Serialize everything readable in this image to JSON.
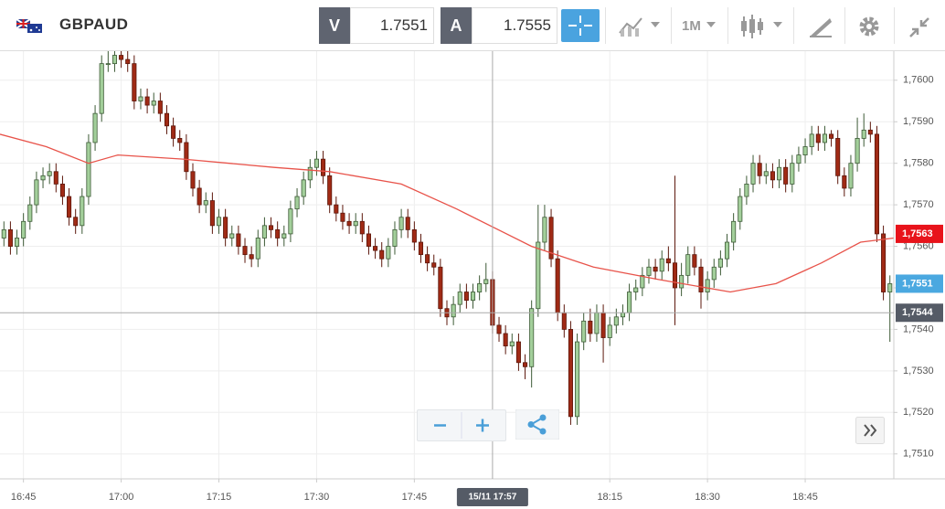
{
  "toolbar": {
    "symbol": "GBPAUD",
    "bid": {
      "label": "V",
      "price": 1.7551
    },
    "ask": {
      "label": "A",
      "price": 1.7555
    },
    "timeframe": "1M"
  },
  "chart_data": {
    "type": "candlestick",
    "x": [
      1002,
      1003,
      1004,
      1005,
      1006,
      1007,
      1008,
      1009,
      1010,
      1011,
      1012,
      1013,
      1014,
      1015,
      1016,
      1017,
      1018,
      1019,
      1020,
      1021,
      1022,
      1023,
      1024,
      1025,
      1026,
      1027,
      1028,
      1029,
      1030,
      1031,
      1032,
      1033,
      1034,
      1035,
      1036,
      1037,
      1038,
      1039,
      1040,
      1041,
      1042,
      1043,
      1044,
      1045,
      1046,
      1047,
      1048,
      1049,
      1050,
      1051,
      1052,
      1053,
      1054,
      1055,
      1056,
      1057,
      1058,
      1059,
      1060,
      1061,
      1062,
      1063,
      1064,
      1065,
      1066,
      1067,
      1068,
      1069,
      1070,
      1071,
      1072,
      1073,
      1074,
      1075,
      1076,
      1077,
      1078,
      1079,
      1080,
      1081,
      1082,
      1083,
      1084,
      1085,
      1086,
      1087,
      1088,
      1089,
      1090,
      1091,
      1092,
      1093,
      1094,
      1095,
      1096,
      1097,
      1098,
      1099,
      1100,
      1101,
      1102,
      1103,
      1104,
      1105,
      1106,
      1107,
      1108,
      1109,
      1110,
      1111,
      1112,
      1113,
      1114,
      1115,
      1116,
      1117,
      1118,
      1119,
      1120,
      1121,
      1122,
      1123,
      1124,
      1125,
      1126,
      1127,
      1128,
      1129,
      1130,
      1131,
      1132,
      1133,
      1134,
      1135,
      1136,
      1137,
      1138
    ],
    "open": [
      1.7562,
      1.7564,
      1.756,
      1.7562,
      1.7566,
      1.757,
      1.7576,
      1.7577,
      1.7578,
      1.7575,
      1.7572,
      1.7567,
      1.7565,
      1.7572,
      1.7585,
      1.7592,
      1.7604,
      1.7604,
      1.7606,
      1.7605,
      1.7604,
      1.7595,
      1.7596,
      1.7594,
      1.7595,
      1.7592,
      1.7589,
      1.7586,
      1.7585,
      1.7578,
      1.7574,
      1.757,
      1.7571,
      1.7565,
      1.7567,
      1.7562,
      1.7563,
      1.756,
      1.7558,
      1.7557,
      1.7562,
      1.7565,
      1.7564,
      1.7562,
      1.7563,
      1.7569,
      1.7572,
      1.7576,
      1.7579,
      1.7581,
      1.7577,
      1.757,
      1.7568,
      1.7566,
      1.7565,
      1.7566,
      1.7563,
      1.756,
      1.7559,
      1.7557,
      1.756,
      1.7564,
      1.7567,
      1.7564,
      1.7561,
      1.7558,
      1.7556,
      1.7555,
      1.7545,
      1.7543,
      1.7546,
      1.7549,
      1.7547,
      1.7549,
      1.7551,
      1.7552,
      1.7541,
      1.7539,
      1.7536,
      1.7537,
      1.7532,
      1.7531,
      1.7545,
      1.7561,
      1.7567,
      1.7557,
      1.7544,
      1.754,
      1.7519,
      1.7537,
      1.7542,
      1.7539,
      1.7544,
      1.7538,
      1.7541,
      1.7543,
      1.7544,
      1.7549,
      1.755,
      1.7553,
      1.7555,
      1.7554,
      1.7557,
      1.7556,
      1.755,
      1.7553,
      1.7558,
      1.7555,
      1.7549,
      1.7552,
      1.7555,
      1.7557,
      1.7561,
      1.7566,
      1.7572,
      1.7575,
      1.758,
      1.7577,
      1.7578,
      1.7576,
      1.7579,
      1.7575,
      1.758,
      1.7582,
      1.7584,
      1.7587,
      1.7585,
      1.7587,
      1.7586,
      1.7577,
      1.7574,
      1.758,
      1.7586,
      1.7588,
      1.7587,
      1.7563,
      1.7549
    ],
    "high": [
      1.7566,
      1.7566,
      1.7564,
      1.7568,
      1.7572,
      1.7578,
      1.7579,
      1.758,
      1.758,
      1.7577,
      1.7574,
      1.7569,
      1.7574,
      1.7587,
      1.7594,
      1.7606,
      1.7607,
      1.7607,
      1.7607,
      1.7607,
      1.7606,
      1.7598,
      1.7598,
      1.7597,
      1.7597,
      1.7594,
      1.7591,
      1.7588,
      1.7587,
      1.758,
      1.7576,
      1.7573,
      1.7573,
      1.7569,
      1.7569,
      1.7565,
      1.7565,
      1.7562,
      1.756,
      1.7564,
      1.7567,
      1.7567,
      1.7566,
      1.7565,
      1.7571,
      1.7574,
      1.7578,
      1.7581,
      1.7583,
      1.7583,
      1.7579,
      1.7572,
      1.757,
      1.7568,
      1.7568,
      1.7568,
      1.7565,
      1.7562,
      1.7561,
      1.7562,
      1.7566,
      1.7569,
      1.7569,
      1.7566,
      1.7563,
      1.756,
      1.7558,
      1.7557,
      1.7547,
      1.7548,
      1.7551,
      1.7551,
      1.7551,
      1.7553,
      1.7556,
      1.7554,
      1.7543,
      1.7541,
      1.7539,
      1.7539,
      1.7534,
      1.7547,
      1.757,
      1.757,
      1.7569,
      1.7559,
      1.7546,
      1.7542,
      1.7539,
      1.7544,
      1.7545,
      1.7546,
      1.7546,
      1.7543,
      1.7545,
      1.7546,
      1.7551,
      1.7552,
      1.7555,
      1.7557,
      1.7557,
      1.7559,
      1.756,
      1.7577,
      1.7556,
      1.756,
      1.756,
      1.7557,
      1.7554,
      1.7557,
      1.7559,
      1.7563,
      1.7568,
      1.7574,
      1.7577,
      1.7582,
      1.7582,
      1.758,
      1.758,
      1.7581,
      1.7581,
      1.7582,
      1.7584,
      1.7586,
      1.7589,
      1.7589,
      1.7589,
      1.7588,
      1.7588,
      1.7579,
      1.7582,
      1.7591,
      1.7592,
      1.759,
      1.7589,
      1.7565,
      1.7553
    ],
    "low": [
      1.756,
      1.7558,
      1.7558,
      1.756,
      1.7564,
      1.7568,
      1.7574,
      1.7575,
      1.7573,
      1.757,
      1.7565,
      1.7563,
      1.7563,
      1.757,
      1.7583,
      1.759,
      1.7602,
      1.7602,
      1.7603,
      1.7602,
      1.7593,
      1.7593,
      1.7592,
      1.7592,
      1.759,
      1.7587,
      1.7584,
      1.7583,
      1.7576,
      1.7572,
      1.7568,
      1.7568,
      1.7563,
      1.7563,
      1.756,
      1.756,
      1.7558,
      1.7556,
      1.7555,
      1.7555,
      1.756,
      1.7562,
      1.756,
      1.756,
      1.7561,
      1.7567,
      1.757,
      1.7574,
      1.7577,
      1.7575,
      1.7568,
      1.7566,
      1.7564,
      1.7563,
      1.7563,
      1.7561,
      1.7558,
      1.7557,
      1.7555,
      1.7555,
      1.7558,
      1.7562,
      1.7562,
      1.7559,
      1.7556,
      1.7554,
      1.7553,
      1.7543,
      1.7541,
      1.7541,
      1.7544,
      1.7545,
      1.7545,
      1.7547,
      1.7549,
      1.7539,
      1.7537,
      1.7534,
      1.7534,
      1.753,
      1.7528,
      1.7526,
      1.7543,
      1.7559,
      1.7555,
      1.7542,
      1.7538,
      1.7517,
      1.7517,
      1.7535,
      1.7537,
      1.7537,
      1.7532,
      1.7536,
      1.7539,
      1.7541,
      1.7542,
      1.7547,
      1.7548,
      1.7551,
      1.7552,
      1.7552,
      1.7554,
      1.7541,
      1.7548,
      1.7551,
      1.7553,
      1.7545,
      1.7547,
      1.755,
      1.7553,
      1.7555,
      1.7559,
      1.7564,
      1.757,
      1.7573,
      1.7575,
      1.7575,
      1.7574,
      1.7574,
      1.7573,
      1.7573,
      1.7578,
      1.758,
      1.7582,
      1.7583,
      1.7583,
      1.7584,
      1.7575,
      1.7572,
      1.7572,
      1.7578,
      1.7584,
      1.7585,
      1.7561,
      1.7547,
      1.7537
    ],
    "close": [
      1.7564,
      1.756,
      1.7562,
      1.7566,
      1.757,
      1.7576,
      1.7577,
      1.7578,
      1.7575,
      1.7572,
      1.7567,
      1.7565,
      1.7572,
      1.7585,
      1.7592,
      1.7604,
      1.7604,
      1.7606,
      1.7605,
      1.7604,
      1.7595,
      1.7596,
      1.7594,
      1.7595,
      1.7592,
      1.7589,
      1.7586,
      1.7585,
      1.7578,
      1.7574,
      1.757,
      1.7571,
      1.7565,
      1.7567,
      1.7562,
      1.7563,
      1.756,
      1.7558,
      1.7557,
      1.7562,
      1.7565,
      1.7564,
      1.7562,
      1.7563,
      1.7569,
      1.7572,
      1.7576,
      1.7579,
      1.7581,
      1.7577,
      1.757,
      1.7568,
      1.7566,
      1.7565,
      1.7566,
      1.7563,
      1.756,
      1.7559,
      1.7557,
      1.756,
      1.7564,
      1.7567,
      1.7564,
      1.7561,
      1.7558,
      1.7556,
      1.7555,
      1.7545,
      1.7543,
      1.7546,
      1.7549,
      1.7547,
      1.7549,
      1.7551,
      1.7552,
      1.7541,
      1.7539,
      1.7536,
      1.7537,
      1.7532,
      1.7531,
      1.7545,
      1.7561,
      1.7567,
      1.7557,
      1.7544,
      1.754,
      1.7519,
      1.7537,
      1.7542,
      1.7539,
      1.7544,
      1.7538,
      1.7541,
      1.7543,
      1.7544,
      1.7549,
      1.755,
      1.7553,
      1.7555,
      1.7554,
      1.7557,
      1.7556,
      1.755,
      1.7553,
      1.7558,
      1.7555,
      1.7549,
      1.7552,
      1.7555,
      1.7557,
      1.7561,
      1.7566,
      1.7572,
      1.7575,
      1.758,
      1.7577,
      1.7578,
      1.7576,
      1.7579,
      1.7575,
      1.758,
      1.7582,
      1.7584,
      1.7587,
      1.7585,
      1.7587,
      1.7586,
      1.7577,
      1.7574,
      1.758,
      1.7586,
      1.7588,
      1.7587,
      1.7563,
      1.7549,
      1.7551
    ],
    "up_color": "#a3cf9b",
    "down_color": "#a02a15",
    "overlay": {
      "type": "line",
      "color": "#e8534a",
      "x": [
        1001.4,
        1008.5,
        1015,
        1019.5,
        1029.5,
        1043.5,
        1052,
        1063,
        1071.5,
        1083,
        1092.5,
        1102.5,
        1113.5,
        1120.5,
        1127.5,
        1133.5,
        1138.6
      ],
      "values": [
        1.7587,
        1.7584,
        1.758,
        1.7582,
        1.7581,
        1.7579,
        1.7578,
        1.7575,
        1.7569,
        1.756,
        1.7555,
        1.7552,
        1.7549,
        1.7551,
        1.7556,
        1.7561,
        1.7562
      ]
    },
    "xlim": [
      1001.4,
      1138.6
    ],
    "xticks": [
      {
        "value": 1005,
        "label": "16:45"
      },
      {
        "value": 1020,
        "label": "17:00"
      },
      {
        "value": 1035,
        "label": "17:15"
      },
      {
        "value": 1050,
        "label": "17:30"
      },
      {
        "value": 1065,
        "label": "17:45"
      },
      {
        "value": 1095,
        "label": "18:15"
      },
      {
        "value": 1110,
        "label": "18:30"
      },
      {
        "value": 1125,
        "label": "18:45"
      }
    ],
    "ylim": [
      1.7504,
      1.7607
    ],
    "yticks": [
      {
        "value": 1.751,
        "label": "1,7510"
      },
      {
        "value": 1.752,
        "label": "1,7520"
      },
      {
        "value": 1.753,
        "label": "1,7530"
      },
      {
        "value": 1.754,
        "label": "1,7540"
      },
      {
        "value": 1.755,
        "label": "1,7550"
      },
      {
        "value": 1.756,
        "label": "1,7560"
      },
      {
        "value": 1.757,
        "label": "1,7570"
      },
      {
        "value": 1.758,
        "label": "1,7580"
      },
      {
        "value": 1.759,
        "label": "1,7590"
      },
      {
        "value": 1.76,
        "label": "1,7600"
      }
    ],
    "grid": true,
    "price_markers": [
      {
        "value": 1.7563,
        "label": "1,7563",
        "color": "#e8131b"
      },
      {
        "value": 1.7551,
        "label": "1,7551",
        "color": "#4aa8e0"
      }
    ],
    "crosshair": {
      "x": 1077,
      "x_label": "15/11 17:57",
      "y": 1.7544,
      "y_label": "1,7544"
    }
  }
}
